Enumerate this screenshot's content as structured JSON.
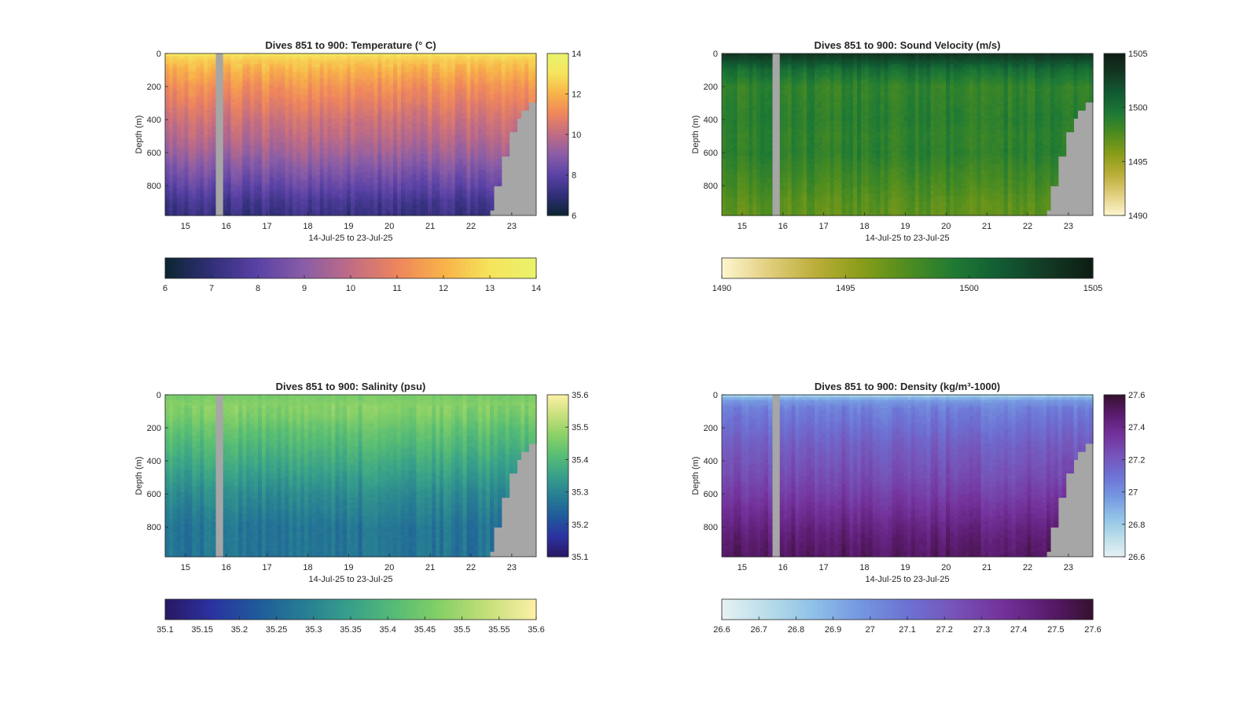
{
  "figure": {
    "shared_xlabel": "14-Jul-25 to 23-Jul-25",
    "x_ticks": [
      "15",
      "16",
      "17",
      "18",
      "19",
      "20",
      "21",
      "22",
      "23"
    ],
    "y_ticks": [
      "0",
      "200",
      "400",
      "600",
      "800"
    ],
    "ylabel": "Depth (m)"
  },
  "chart_data": [
    {
      "type": "heatmap",
      "title": "Dives 851 to 900: Temperature (° C)",
      "xlabel": "14-Jul-25 to 23-Jul-25",
      "ylabel": "Depth (m)",
      "x_unit": "day of July 2025",
      "xlim": [
        14.5,
        23.6
      ],
      "ylim": [
        0,
        980
      ],
      "y_reversed": true,
      "clim": [
        6,
        14
      ],
      "colorbar_ticks": [
        "6",
        "8",
        "10",
        "12",
        "14"
      ],
      "horizontal_colorbar_ticks": [
        "6",
        "7",
        "8",
        "9",
        "10",
        "11",
        "12",
        "13",
        "14"
      ],
      "colormap": [
        "#0b2530",
        "#312f79",
        "#5a42a6",
        "#8a5da6",
        "#c06c84",
        "#ee855d",
        "#f8b249",
        "#f6e45c",
        "#e9f36c"
      ],
      "profile": [
        [
          0,
          13.2
        ],
        [
          30,
          12.6
        ],
        [
          100,
          12.0
        ],
        [
          200,
          11.3
        ],
        [
          300,
          10.8
        ],
        [
          400,
          10.3
        ],
        [
          500,
          9.9
        ],
        [
          600,
          9.4
        ],
        [
          700,
          8.8
        ],
        [
          800,
          8.2
        ],
        [
          900,
          7.5
        ],
        [
          980,
          7.2
        ]
      ],
      "gap_days": [
        15.75,
        15.95
      ],
      "bottom_depth_at_x": [
        [
          22.3,
          980
        ],
        [
          22.45,
          940
        ],
        [
          22.55,
          800
        ],
        [
          22.75,
          620
        ],
        [
          22.9,
          480
        ],
        [
          23.1,
          400
        ],
        [
          23.25,
          340
        ],
        [
          23.45,
          300
        ],
        [
          23.6,
          260
        ]
      ]
    },
    {
      "type": "heatmap",
      "title": "Dives 851 to 900: Sound Velocity (m/s)",
      "xlabel": "14-Jul-25 to 23-Jul-25",
      "ylabel": "Depth (m)",
      "x_unit": "day of July 2025",
      "xlim": [
        14.5,
        23.6
      ],
      "ylim": [
        0,
        980
      ],
      "y_reversed": true,
      "clim": [
        1490,
        1505
      ],
      "colorbar_ticks": [
        "1490",
        "1495",
        "1500",
        "1505"
      ],
      "horizontal_colorbar_ticks": [
        "1490",
        "1495",
        "1500",
        "1505"
      ],
      "colormap": [
        "#fdf6d0",
        "#e2cf7f",
        "#bcae3a",
        "#8a9d19",
        "#4f8d1f",
        "#1f7a34",
        "#115c34",
        "#133924",
        "#0d1d13"
      ],
      "profile": [
        [
          0,
          1503.5
        ],
        [
          30,
          1502.5
        ],
        [
          100,
          1500.2
        ],
        [
          200,
          1498.6
        ],
        [
          300,
          1498.8
        ],
        [
          400,
          1499.0
        ],
        [
          500,
          1498.7
        ],
        [
          600,
          1498.9
        ],
        [
          700,
          1498.3
        ],
        [
          800,
          1497.8
        ],
        [
          900,
          1497.2
        ],
        [
          980,
          1497.0
        ]
      ],
      "gap_days": [
        15.75,
        15.95
      ],
      "bottom_depth_at_x": [
        [
          22.3,
          980
        ],
        [
          22.45,
          940
        ],
        [
          22.55,
          800
        ],
        [
          22.75,
          620
        ],
        [
          22.9,
          480
        ],
        [
          23.1,
          400
        ],
        [
          23.25,
          340
        ],
        [
          23.45,
          300
        ],
        [
          23.6,
          260
        ]
      ]
    },
    {
      "type": "heatmap",
      "title": "Dives 851 to 900: Salinity (psu)",
      "xlabel": "14-Jul-25 to 23-Jul-25",
      "ylabel": "Depth (m)",
      "x_unit": "day of July 2025",
      "xlim": [
        14.5,
        23.6
      ],
      "ylim": [
        0,
        980
      ],
      "y_reversed": true,
      "clim": [
        35.1,
        35.6
      ],
      "colorbar_ticks": [
        "35.1",
        "35.2",
        "35.3",
        "35.4",
        "35.5",
        "35.6"
      ],
      "horizontal_colorbar_ticks": [
        "35.1",
        "35.15",
        "35.2",
        "35.25",
        "35.3",
        "35.35",
        "35.4",
        "35.45",
        "35.5",
        "35.55",
        "35.6"
      ],
      "colormap": [
        "#2a1863",
        "#2b32a0",
        "#1f5b9a",
        "#277e93",
        "#38a08a",
        "#58bd74",
        "#8ad166",
        "#c8e07c",
        "#fdf0a8"
      ],
      "profile": [
        [
          0,
          35.45
        ],
        [
          60,
          35.47
        ],
        [
          120,
          35.46
        ],
        [
          200,
          35.43
        ],
        [
          300,
          35.4
        ],
        [
          400,
          35.37
        ],
        [
          500,
          35.34
        ],
        [
          600,
          35.31
        ],
        [
          700,
          35.29
        ],
        [
          800,
          35.27
        ],
        [
          900,
          35.27
        ],
        [
          980,
          35.27
        ]
      ],
      "gap_days": [
        15.75,
        15.95
      ],
      "bottom_depth_at_x": [
        [
          22.3,
          980
        ],
        [
          22.45,
          940
        ],
        [
          22.55,
          800
        ],
        [
          22.75,
          620
        ],
        [
          22.9,
          480
        ],
        [
          23.1,
          400
        ],
        [
          23.25,
          340
        ],
        [
          23.45,
          300
        ],
        [
          23.6,
          260
        ]
      ]
    },
    {
      "type": "heatmap",
      "title": "Dives 851 to 900: Density (kg/m³-1000)",
      "xlabel": "14-Jul-25 to 23-Jul-25",
      "ylabel": "Depth (m)",
      "x_unit": "day of July 2025",
      "xlim": [
        14.5,
        23.6
      ],
      "ylim": [
        0,
        980
      ],
      "y_reversed": true,
      "clim": [
        26.6,
        27.6
      ],
      "colorbar_ticks": [
        "26.6",
        "26.8",
        "27",
        "27.2",
        "27.4",
        "27.6"
      ],
      "horizontal_colorbar_ticks": [
        "26.6",
        "26.7",
        "26.8",
        "26.9",
        "27",
        "27.1",
        "27.2",
        "27.3",
        "27.4",
        "27.5",
        "27.6"
      ],
      "colormap": [
        "#e7f1f4",
        "#b8dde9",
        "#8ec0e8",
        "#7596e0",
        "#6d72d4",
        "#7654b8",
        "#74339c",
        "#5b1c70",
        "#36102f"
      ],
      "profile": [
        [
          0,
          26.75
        ],
        [
          30,
          26.95
        ],
        [
          80,
          27.05
        ],
        [
          200,
          27.12
        ],
        [
          300,
          27.18
        ],
        [
          400,
          27.22
        ],
        [
          500,
          27.26
        ],
        [
          600,
          27.31
        ],
        [
          700,
          27.37
        ],
        [
          800,
          27.43
        ],
        [
          900,
          27.48
        ],
        [
          980,
          27.5
        ]
      ],
      "gap_days": [
        15.75,
        15.95
      ],
      "bottom_depth_at_x": [
        [
          22.3,
          980
        ],
        [
          22.45,
          940
        ],
        [
          22.55,
          800
        ],
        [
          22.75,
          620
        ],
        [
          22.9,
          480
        ],
        [
          23.1,
          400
        ],
        [
          23.25,
          340
        ],
        [
          23.45,
          300
        ],
        [
          23.6,
          260
        ]
      ]
    }
  ]
}
